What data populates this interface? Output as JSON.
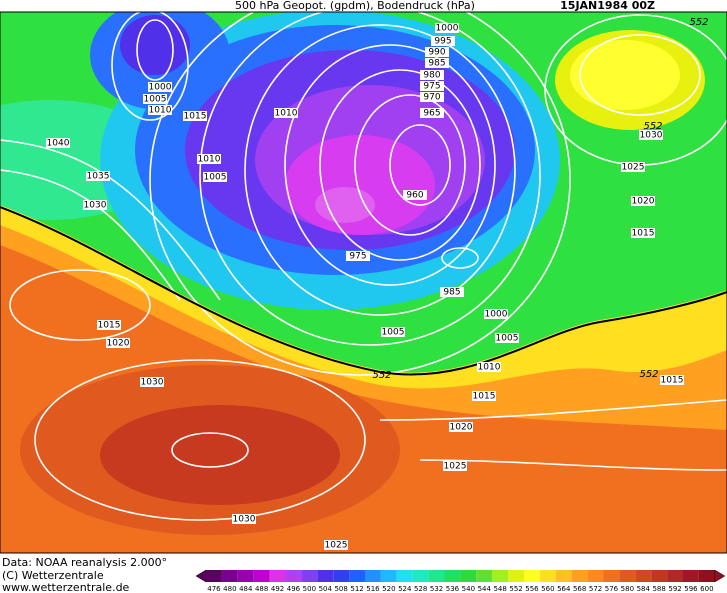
{
  "header": {
    "title": "500 hPa Geopot. (gpdm), Bodendruck (hPa)",
    "date": "15JAN1984 00Z"
  },
  "footer": {
    "source": "Data: NOAA reanalysis 2.000°",
    "copyright": "(C) Wetterzentrale",
    "url": "www.wetterzentrale.de"
  },
  "isobar_labels": [
    1000,
    995,
    990,
    985,
    980,
    975,
    970,
    965,
    960,
    975,
    985,
    1000,
    1005,
    1010,
    1015,
    1020,
    1025,
    1030,
    1025,
    1030,
    1020,
    1015,
    1030,
    1035,
    1040,
    1000,
    1005,
    1010,
    1015,
    1010,
    1010,
    1005,
    1005,
    1030,
    1025,
    1020,
    1015,
    1015
  ],
  "geopotential_labels": [
    552,
    552,
    552,
    552
  ],
  "colorbar": {
    "values": [
      476,
      480,
      484,
      488,
      492,
      496,
      500,
      504,
      508,
      512,
      516,
      520,
      524,
      528,
      532,
      536,
      540,
      544,
      548,
      552,
      556,
      560,
      564,
      568,
      572,
      576,
      580,
      584,
      588,
      592,
      596,
      600
    ],
    "colors": [
      "#5a0060",
      "#7a0090",
      "#9a00b0",
      "#c000d0",
      "#e030e8",
      "#b040f0",
      "#8040f0",
      "#5030e8",
      "#3040f0",
      "#2060ff",
      "#2090ff",
      "#20b8ff",
      "#20e0f0",
      "#20e8c0",
      "#20e890",
      "#20e060",
      "#30d840",
      "#60e030",
      "#a0f020",
      "#e0f010",
      "#ffff20",
      "#ffe020",
      "#ffc020",
      "#ffa020",
      "#ff8820",
      "#f07020",
      "#e05a20",
      "#d04820",
      "#c03820",
      "#b02828",
      "#a01828",
      "#901020"
    ]
  }
}
